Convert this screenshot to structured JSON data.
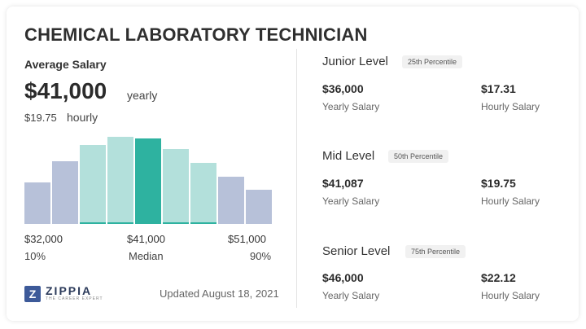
{
  "title": "CHEMICAL LABORATORY TECHNICIAN",
  "summary": {
    "average_label": "Average Salary",
    "yearly_value": "$41,000",
    "yearly_word": "yearly",
    "hourly_value": "$19.75",
    "hourly_word": "hourly"
  },
  "chart_data": {
    "type": "bar",
    "categories": [
      "1",
      "2",
      "3",
      "4",
      "5",
      "6",
      "7",
      "8",
      "9"
    ],
    "values": [
      48,
      72,
      91,
      100,
      98,
      86,
      70,
      54,
      39
    ],
    "ylim": [
      0,
      100
    ],
    "highlighted_index": 4,
    "band_low_index": 2,
    "band_high_index": 6,
    "colors": {
      "outer": "#b7c1d9",
      "band": "#b3e0db",
      "median": "#2eb2a0",
      "band_tick": "#2eb2a0"
    },
    "axis_values": [
      "$32,000",
      "$41,000",
      "$51,000"
    ],
    "axis_percentiles": [
      "10%",
      "Median",
      "90%"
    ]
  },
  "footer": {
    "logo_name": "ZIPPIA",
    "logo_tagline": "THE CAREER EXPERT",
    "updated": "Updated August 18, 2021"
  },
  "levels": [
    {
      "name": "Junior Level",
      "percentile": "25th Percentile",
      "yearly": "$36,000",
      "yearly_label": "Yearly Salary",
      "hourly": "$17.31",
      "hourly_label": "Hourly Salary"
    },
    {
      "name": "Mid Level",
      "percentile": "50th Percentile",
      "yearly": "$41,087",
      "yearly_label": "Yearly Salary",
      "hourly": "$19.75",
      "hourly_label": "Hourly Salary"
    },
    {
      "name": "Senior Level",
      "percentile": "75th Percentile",
      "yearly": "$46,000",
      "yearly_label": "Yearly Salary",
      "hourly": "$22.12",
      "hourly_label": "Hourly Salary"
    }
  ]
}
